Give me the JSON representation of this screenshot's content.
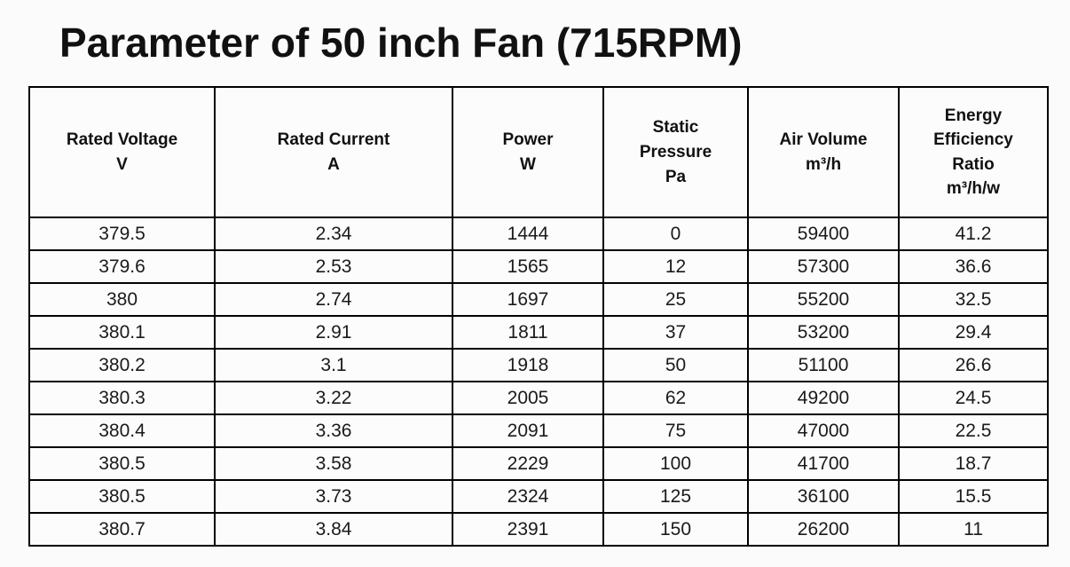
{
  "title": "Parameter of 50 inch Fan (715RPM)",
  "colors": {
    "background": "#fbfbfb",
    "table_border": "#000000",
    "text": "#141414"
  },
  "chart_data": {
    "type": "table",
    "title": "Parameter of 50 inch Fan (715RPM)",
    "columns": [
      {
        "label": "Rated Voltage",
        "unit": "V"
      },
      {
        "label": "Rated Current",
        "unit": "A"
      },
      {
        "label": "Power",
        "unit": "W"
      },
      {
        "label": "Static Pressure",
        "unit": "Pa"
      },
      {
        "label": "Air Volume",
        "unit": "m³/h"
      },
      {
        "label": "Energy Efficiency Ratio",
        "unit": "m³/h/w"
      }
    ],
    "rows": [
      [
        "379.5",
        "2.34",
        "1444",
        "0",
        "59400",
        "41.2"
      ],
      [
        "379.6",
        "2.53",
        "1565",
        "12",
        "57300",
        "36.6"
      ],
      [
        "380",
        "2.74",
        "1697",
        "25",
        "55200",
        "32.5"
      ],
      [
        "380.1",
        "2.91",
        "1811",
        "37",
        "53200",
        "29.4"
      ],
      [
        "380.2",
        "3.1",
        "1918",
        "50",
        "51100",
        "26.6"
      ],
      [
        "380.3",
        "3.22",
        "2005",
        "62",
        "49200",
        "24.5"
      ],
      [
        "380.4",
        "3.36",
        "2091",
        "75",
        "47000",
        "22.5"
      ],
      [
        "380.5",
        "3.58",
        "2229",
        "100",
        "41700",
        "18.7"
      ],
      [
        "380.5",
        "3.73",
        "2324",
        "125",
        "36100",
        "15.5"
      ],
      [
        "380.7",
        "3.84",
        "2391",
        "150",
        "26200",
        "11"
      ]
    ]
  }
}
